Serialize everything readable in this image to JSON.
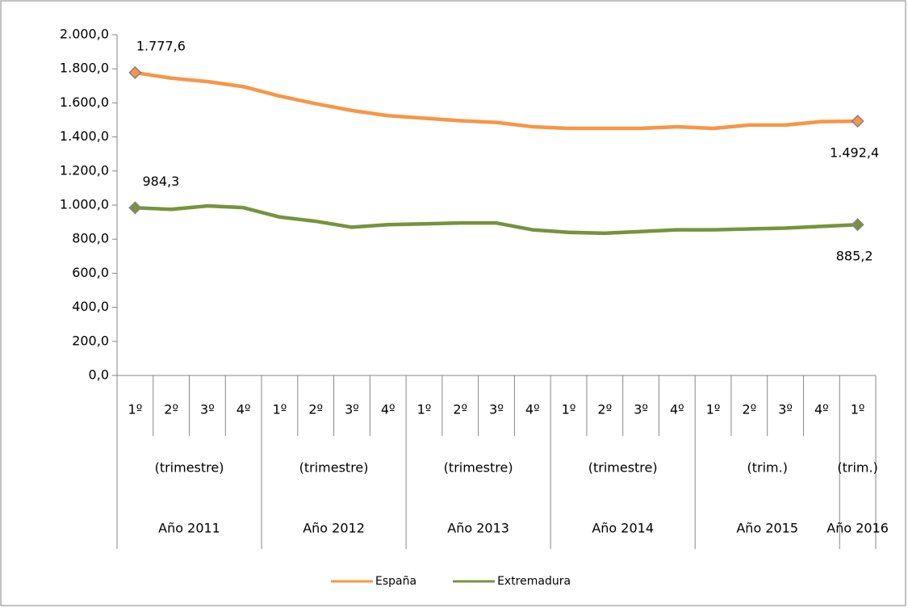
{
  "chart_data": {
    "type": "line",
    "category_groups": [
      {
        "name": "Año 2011",
        "label": "(trimestre)",
        "categories": [
          "1º",
          "2º",
          "3º",
          "4º"
        ]
      },
      {
        "name": "Año 2012",
        "label": "(trimestre)",
        "categories": [
          "1º",
          "2º",
          "3º",
          "4º"
        ]
      },
      {
        "name": "Año 2013",
        "label": "(trimestre)",
        "categories": [
          "1º",
          "2º",
          "3º",
          "4º"
        ]
      },
      {
        "name": "Año 2014",
        "label": "(trimestre)",
        "categories": [
          "1º",
          "2º",
          "3º",
          "4º"
        ]
      },
      {
        "name": "Año 2015",
        "label": "(trim.)",
        "categories": [
          "1º",
          "2º",
          "3º",
          "4º"
        ]
      },
      {
        "name": "Año 2016",
        "label": "(trim.)",
        "categories": [
          "1º"
        ]
      }
    ],
    "series": [
      {
        "name": "España",
        "color": "#f79646",
        "values": [
          1777.6,
          1745,
          1725,
          1695,
          1640,
          1595,
          1555,
          1525,
          1510,
          1495,
          1485,
          1460,
          1450,
          1450,
          1450,
          1460,
          1450,
          1470,
          1470,
          1490,
          1492.4
        ],
        "value_labels": [
          "1.777,6",
          null,
          null,
          null,
          null,
          null,
          null,
          null,
          null,
          null,
          null,
          null,
          null,
          null,
          null,
          null,
          null,
          null,
          null,
          null,
          "1.492,4"
        ]
      },
      {
        "name": "Extremadura",
        "color": "#77933c",
        "values": [
          984.3,
          975,
          995,
          985,
          930,
          905,
          870,
          885,
          890,
          895,
          895,
          855,
          840,
          835,
          845,
          855,
          855,
          860,
          865,
          875,
          885.2
        ],
        "value_labels": [
          "984,3",
          null,
          null,
          null,
          null,
          null,
          null,
          null,
          null,
          null,
          null,
          null,
          null,
          null,
          null,
          null,
          null,
          null,
          null,
          null,
          "885,2"
        ]
      }
    ],
    "ylim": [
      0,
      2000
    ],
    "yticks": [
      {
        "value": 0,
        "label": "0,0"
      },
      {
        "value": 200,
        "label": "200,0"
      },
      {
        "value": 400,
        "label": "400,0"
      },
      {
        "value": 600,
        "label": "600,0"
      },
      {
        "value": 800,
        "label": "800,0"
      },
      {
        "value": 1000,
        "label": "1.000,0"
      },
      {
        "value": 1200,
        "label": "1.200,0"
      },
      {
        "value": 1400,
        "label": "1.400,0"
      },
      {
        "value": 1600,
        "label": "1.600,0"
      },
      {
        "value": 1800,
        "label": "1.800,0"
      },
      {
        "value": 2000,
        "label": "2.000,0"
      }
    ],
    "grid": false,
    "legend": "bottom"
  }
}
